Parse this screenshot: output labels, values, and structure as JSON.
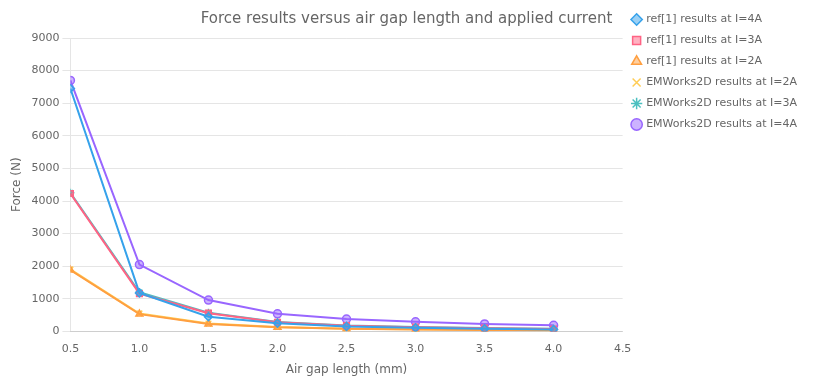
{
  "chart_data": {
    "type": "line",
    "title": "Force results versus air gap length and applied current",
    "xlabel": "Air gap length (mm)",
    "ylabel": "Force (N)",
    "x": [
      0.5,
      1.0,
      1.5,
      2.0,
      2.5,
      3.0,
      3.5,
      4.0
    ],
    "xlim": [
      0.5,
      4.5
    ],
    "xticks": [
      0.5,
      {
        "value": 1.0,
        "label": "1.0"
      },
      1.5,
      {
        "value": 2.0,
        "label": "2.0"
      },
      2.5,
      {
        "value": 3.0,
        "label": "3.0"
      },
      3.5,
      {
        "value": 4.0,
        "label": "4.0"
      },
      4.5
    ],
    "ylim": [
      0,
      9000
    ],
    "yticks": [
      0,
      1000,
      2000,
      3000,
      4000,
      5000,
      6000,
      7000,
      8000,
      9000
    ],
    "grid": "y",
    "legend": "right",
    "series": [
      {
        "name": "ref[1] results at I=4A",
        "marker": "diamond",
        "values": [
          7450,
          1180,
          450,
          250,
          150,
          110,
          80,
          60
        ]
      },
      {
        "name": "ref[1] results at I=3A",
        "marker": "square",
        "values": [
          4230,
          1160,
          560,
          280,
          175,
          130,
          100,
          75
        ]
      },
      {
        "name": "ref[1] results at I=2A",
        "marker": "triangle",
        "values": [
          1880,
          530,
          230,
          130,
          80,
          60,
          45,
          35
        ]
      },
      {
        "name": "EMWorks2D results at I=2A",
        "marker": "x",
        "values": [
          1900,
          550,
          240,
          135,
          85,
          65,
          48,
          38
        ]
      },
      {
        "name": "EMWorks2D results at I=3A",
        "marker": "star",
        "values": [
          4250,
          1200,
          570,
          290,
          180,
          135,
          105,
          80
        ]
      },
      {
        "name": "EMWorks2D results at I=4A",
        "marker": "circle",
        "values": [
          7700,
          2050,
          960,
          540,
          380,
          295,
          230,
          185
        ]
      }
    ]
  }
}
